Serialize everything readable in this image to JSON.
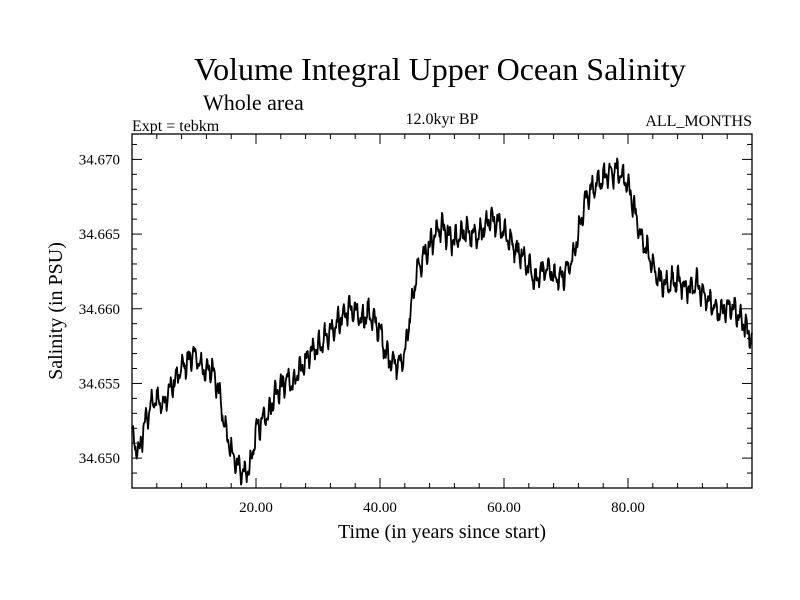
{
  "chart_data": {
    "type": "line",
    "title": "Volume Integral Upper Ocean Salinity",
    "subtitle": "Whole area",
    "header_left": "Expt = tebkm",
    "header_center": "12.0kyr BP",
    "header_right": "ALL_MONTHS",
    "xlabel": "Time (in years since start)",
    "ylabel": "Salinity (in PSU)",
    "xlim": [
      0,
      100
    ],
    "ylim": [
      34.648,
      34.6717
    ],
    "x_ticks": [
      20,
      40,
      60,
      80
    ],
    "x_tick_labels": [
      "20.00",
      "40.00",
      "60.00",
      "80.00"
    ],
    "y_ticks": [
      34.65,
      34.655,
      34.66,
      34.665,
      34.67
    ],
    "y_tick_labels": [
      "34.650",
      "34.655",
      "34.660",
      "34.665",
      "34.670"
    ],
    "grid": false,
    "series": [
      {
        "name": "Salinity",
        "color": "#000000",
        "x": [
          0,
          1,
          2,
          3,
          4,
          5,
          6,
          7,
          8,
          9,
          10,
          11,
          12,
          13,
          14,
          15,
          16,
          17,
          18,
          19,
          20,
          21,
          22,
          23,
          24,
          25,
          26,
          27,
          28,
          29,
          30,
          31,
          32,
          33,
          34,
          35,
          36,
          37,
          38,
          39,
          40,
          41,
          42,
          43,
          44,
          45,
          46,
          47,
          48,
          49,
          50,
          51,
          52,
          53,
          54,
          55,
          56,
          57,
          58,
          59,
          60,
          61,
          62,
          63,
          64,
          65,
          66,
          67,
          68,
          69,
          70,
          71,
          72,
          73,
          74,
          75,
          76,
          77,
          78,
          79,
          80,
          81,
          82,
          83,
          84,
          85,
          86,
          87,
          88,
          89,
          90,
          91,
          92,
          93,
          94,
          95,
          96,
          97,
          98,
          99,
          100
        ],
        "values": [
          34.6515,
          34.6502,
          34.6522,
          34.6535,
          34.654,
          34.6536,
          34.6545,
          34.6552,
          34.656,
          34.6565,
          34.657,
          34.6562,
          34.6558,
          34.656,
          34.6545,
          34.652,
          34.6505,
          34.6495,
          34.649,
          34.6492,
          34.6518,
          34.6525,
          34.653,
          34.6542,
          34.6548,
          34.6552,
          34.655,
          34.6558,
          34.6565,
          34.6572,
          34.6575,
          34.658,
          34.6585,
          34.659,
          34.6595,
          34.66,
          34.6598,
          34.6592,
          34.6598,
          34.6592,
          34.6585,
          34.657,
          34.6565,
          34.6562,
          34.657,
          34.66,
          34.6625,
          34.6635,
          34.6642,
          34.665,
          34.6655,
          34.6648,
          34.6645,
          34.665,
          34.6652,
          34.6648,
          34.665,
          34.6655,
          34.666,
          34.6658,
          34.6652,
          34.6645,
          34.664,
          34.6635,
          34.6628,
          34.662,
          34.6625,
          34.6628,
          34.6622,
          34.662,
          34.6625,
          34.6632,
          34.665,
          34.6672,
          34.668,
          34.6682,
          34.6688,
          34.669,
          34.6692,
          34.669,
          34.6682,
          34.6668,
          34.6648,
          34.664,
          34.6628,
          34.662,
          34.6615,
          34.6618,
          34.662,
          34.6615,
          34.6612,
          34.6618,
          34.661,
          34.6605,
          34.66,
          34.6598,
          34.6602,
          34.66,
          34.6595,
          34.6588,
          34.6578
        ]
      }
    ]
  }
}
